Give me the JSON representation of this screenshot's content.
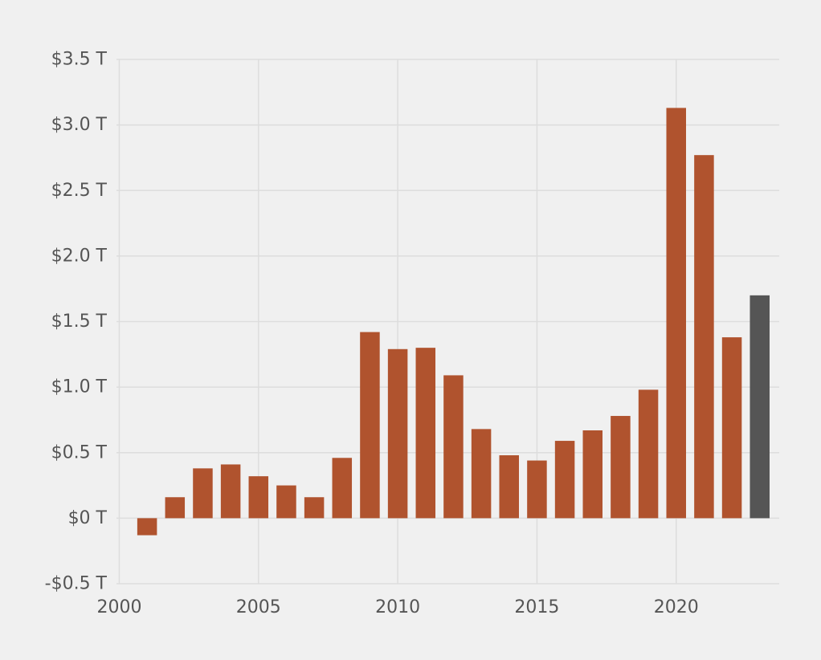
{
  "chart_data": {
    "type": "bar",
    "title": "",
    "xlabel": "",
    "ylabel": "",
    "x": [
      2001,
      2002,
      2003,
      2004,
      2005,
      2006,
      2007,
      2008,
      2009,
      2010,
      2011,
      2012,
      2013,
      2014,
      2015,
      2016,
      2017,
      2018,
      2019,
      2020,
      2021,
      2022,
      2023
    ],
    "values": [
      -0.13,
      0.16,
      0.38,
      0.41,
      0.32,
      0.25,
      0.16,
      0.46,
      1.42,
      1.29,
      1.3,
      1.09,
      0.68,
      0.48,
      0.44,
      0.59,
      0.67,
      0.78,
      0.98,
      3.13,
      2.77,
      1.38,
      1.7
    ],
    "highlight_x": [
      2023
    ],
    "colors": {
      "bar": "#b0532e",
      "highlight": "#555555",
      "grid": "#dddddd",
      "axis_text": "#555555",
      "background": "#f0f0f0"
    },
    "xlim": [
      1999.9,
      2023.7
    ],
    "ylim": [
      -0.5,
      3.5
    ],
    "xticks": [
      2000,
      2005,
      2010,
      2015,
      2020
    ],
    "xtick_labels": [
      "2000",
      "2005",
      "2010",
      "2015",
      "2020"
    ],
    "yticks": [
      -0.5,
      0,
      0.5,
      1.0,
      1.5,
      2.0,
      2.5,
      3.0,
      3.5
    ],
    "ytick_labels": [
      "-$0.5 T",
      "$0 T",
      "$0.5 T",
      "$1.0 T",
      "$1.5 T",
      "$2.0 T",
      "$2.5 T",
      "$3.0 T",
      "$3.5 T"
    ],
    "grid": true,
    "legend": "none"
  }
}
